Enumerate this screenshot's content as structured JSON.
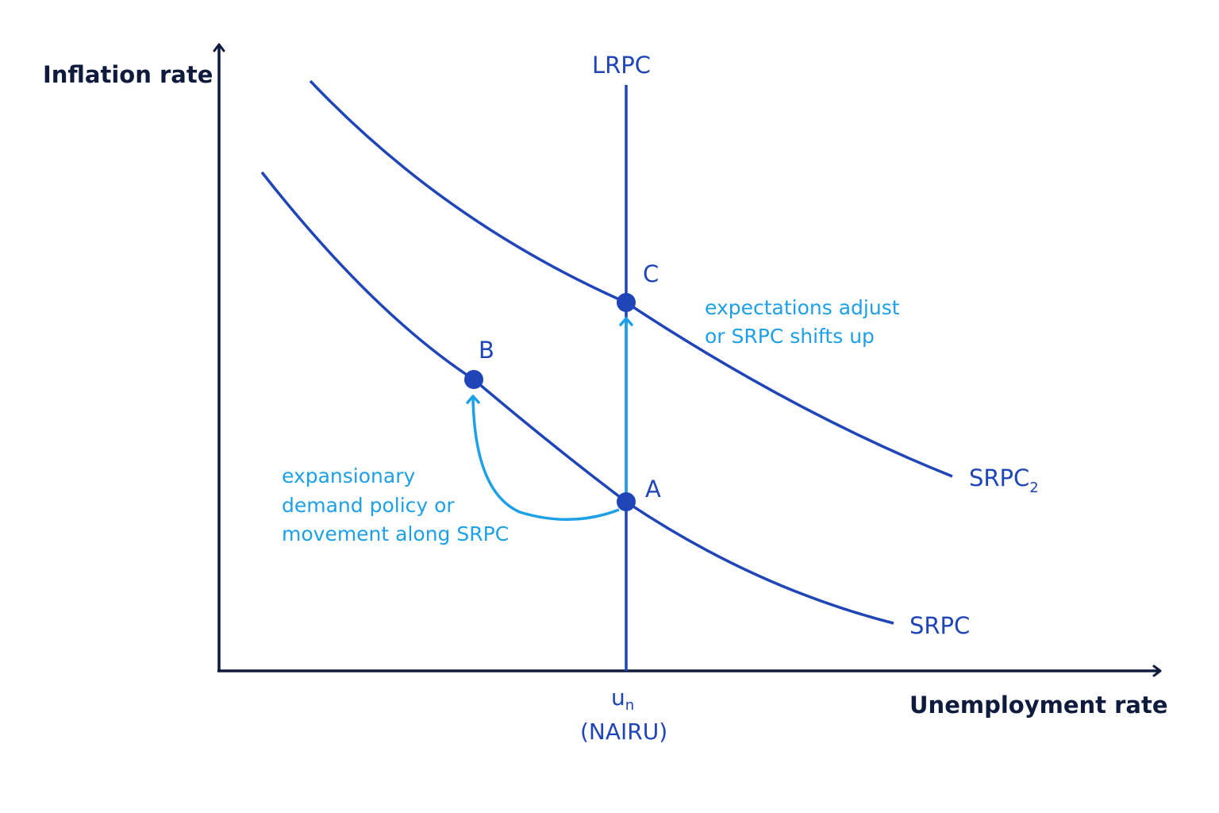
{
  "axes": {
    "y_title": "Inflation rate",
    "x_title": "Unemployment rate"
  },
  "curves": {
    "lrpc": "LRPC",
    "srpc": "SRPC",
    "srpc2_base": "SRPC",
    "srpc2_sub": "2"
  },
  "points": {
    "a": "A",
    "b": "B",
    "c": "C"
  },
  "x_tick": {
    "symbol": "u",
    "subscript": "n",
    "note": "(NAIRU)"
  },
  "annotations": {
    "movement": [
      "expansionary",
      "demand policy or",
      "movement along SRPC"
    ],
    "shift": [
      "expectations adjust",
      "or SRPC shifts up"
    ]
  },
  "colors": {
    "axis": "#0f1b3d",
    "curve": "#1f45b8",
    "arrow": "#1ea0e8"
  }
}
